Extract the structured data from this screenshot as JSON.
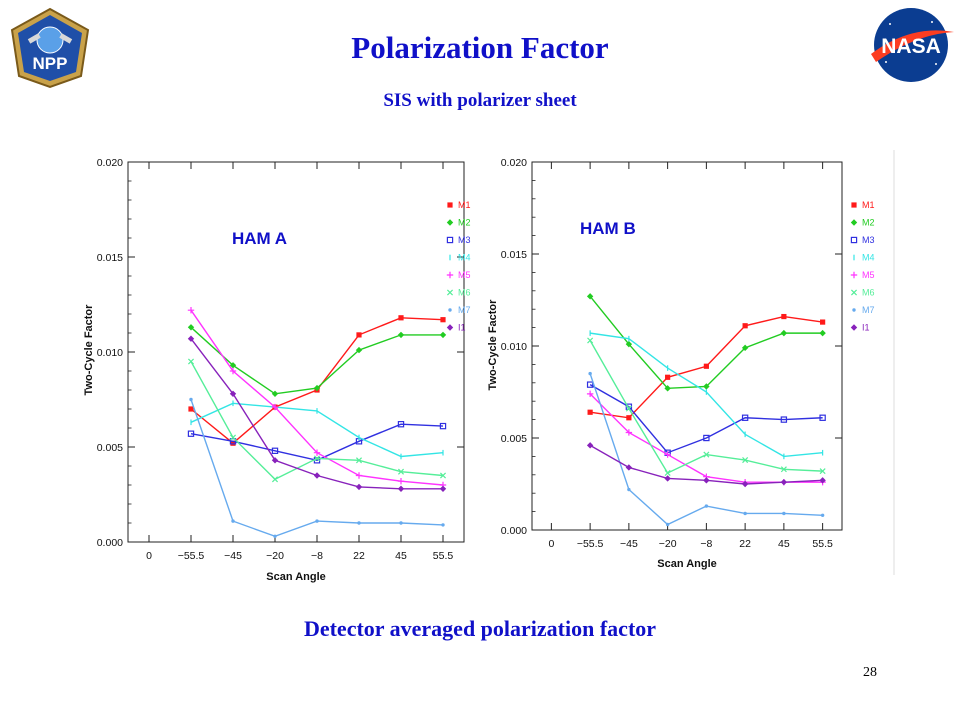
{
  "slide": {
    "title": "Polarization  Factor",
    "subtitle": "SIS with polarizer sheet",
    "caption": "Detector averaged polarization factor",
    "page_number": "28"
  },
  "logos": {
    "left": {
      "name": "npp-logo",
      "text": "NPP",
      "color": "#2a4f9e"
    },
    "right": {
      "name": "nasa-logo",
      "text": "NASA",
      "color": "#0b3d91",
      "accent": "#fc3d21"
    }
  },
  "chart_data": [
    {
      "type": "line",
      "panel_label": "HAM A",
      "xlabel": "Scan Angle",
      "ylabel": "Two-Cycle Factor",
      "categories": [
        "-55.5",
        "-45",
        "-20",
        "-8",
        "22",
        "45",
        "55.5"
      ],
      "x_tick_labels": [
        "0",
        "−55.5",
        "−45",
        "−20",
        "−8",
        "22",
        "45",
        "55.5"
      ],
      "y_tick_labels": [
        "0.000",
        "0.005",
        "0.010",
        "0.015",
        "0.020"
      ],
      "ylim": [
        0,
        0.02
      ],
      "grid": false,
      "legend": "right",
      "series": [
        {
          "name": "M1",
          "color": "#ff1a1a",
          "marker": "square-filled",
          "values": [
            0.007,
            0.0052,
            0.0071,
            0.008,
            0.0109,
            0.0118,
            0.0117
          ]
        },
        {
          "name": "M2",
          "color": "#22cc22",
          "marker": "diamond-filled",
          "values": [
            0.0113,
            0.0093,
            0.0078,
            0.0081,
            0.0101,
            0.0109,
            0.0109
          ]
        },
        {
          "name": "M3",
          "color": "#3030e0",
          "marker": "square-open",
          "values": [
            0.0057,
            0.0053,
            0.0048,
            0.0043,
            0.0053,
            0.0062,
            0.0061
          ]
        },
        {
          "name": "M4",
          "color": "#33e5e5",
          "marker": "tick",
          "values": [
            0.0063,
            0.0073,
            0.0071,
            0.0069,
            0.0055,
            0.0045,
            0.0047
          ]
        },
        {
          "name": "M5",
          "color": "#ff33ff",
          "marker": "plus",
          "values": [
            0.0122,
            0.009,
            0.0071,
            0.0047,
            0.0035,
            0.0032,
            0.003
          ]
        },
        {
          "name": "M6",
          "color": "#55ee99",
          "marker": "x",
          "values": [
            0.0095,
            0.0055,
            0.0033,
            0.0044,
            0.0043,
            0.0037,
            0.0035
          ]
        },
        {
          "name": "M7",
          "color": "#66aaee",
          "marker": "dot",
          "values": [
            0.0075,
            0.0011,
            0.0003,
            0.0011,
            0.001,
            0.001,
            0.0009
          ]
        },
        {
          "name": "I1",
          "color": "#8822bb",
          "marker": "diamond-filled",
          "values": [
            0.0107,
            0.0078,
            0.0043,
            0.0035,
            0.0029,
            0.0028,
            0.0028
          ]
        }
      ]
    },
    {
      "type": "line",
      "panel_label": "HAM B",
      "xlabel": "Scan Angle",
      "ylabel": "Two-Cycle Factor",
      "categories": [
        "-55.5",
        "-45",
        "-20",
        "-8",
        "22",
        "45",
        "55.5"
      ],
      "x_tick_labels": [
        "0",
        "−55.5",
        "−45",
        "−20",
        "−8",
        "22",
        "45",
        "55.5"
      ],
      "y_tick_labels": [
        "0.000",
        "0.005",
        "0.010",
        "0.015",
        "0.020"
      ],
      "ylim": [
        0,
        0.02
      ],
      "grid": false,
      "legend": "right",
      "series": [
        {
          "name": "M1",
          "color": "#ff1a1a",
          "marker": "square-filled",
          "values": [
            0.0064,
            0.0061,
            0.0083,
            0.0089,
            0.0111,
            0.0116,
            0.0113
          ]
        },
        {
          "name": "M2",
          "color": "#22cc22",
          "marker": "diamond-filled",
          "values": [
            0.0127,
            0.0101,
            0.0077,
            0.0078,
            0.0099,
            0.0107,
            0.0107
          ]
        },
        {
          "name": "M3",
          "color": "#3030e0",
          "marker": "square-open",
          "values": [
            0.0079,
            0.0067,
            0.0042,
            0.005,
            0.0061,
            0.006,
            0.0061
          ]
        },
        {
          "name": "M4",
          "color": "#33e5e5",
          "marker": "tick",
          "values": [
            0.0107,
            0.0104,
            0.0088,
            0.0075,
            0.0052,
            0.004,
            0.0042
          ]
        },
        {
          "name": "M5",
          "color": "#ff33ff",
          "marker": "plus",
          "values": [
            0.0074,
            0.0053,
            0.0041,
            0.0029,
            0.0026,
            0.0026,
            0.0026
          ]
        },
        {
          "name": "M6",
          "color": "#55ee99",
          "marker": "x",
          "values": [
            0.0103,
            0.0066,
            0.0031,
            0.0041,
            0.0038,
            0.0033,
            0.0032
          ]
        },
        {
          "name": "M7",
          "color": "#66aaee",
          "marker": "dot",
          "values": [
            0.0085,
            0.0022,
            0.0003,
            0.0013,
            0.0009,
            0.0009,
            0.0008
          ]
        },
        {
          "name": "I1",
          "color": "#8822bb",
          "marker": "diamond-filled",
          "values": [
            0.0046,
            0.0034,
            0.0028,
            0.0027,
            0.0025,
            0.0026,
            0.0027
          ]
        }
      ]
    }
  ]
}
